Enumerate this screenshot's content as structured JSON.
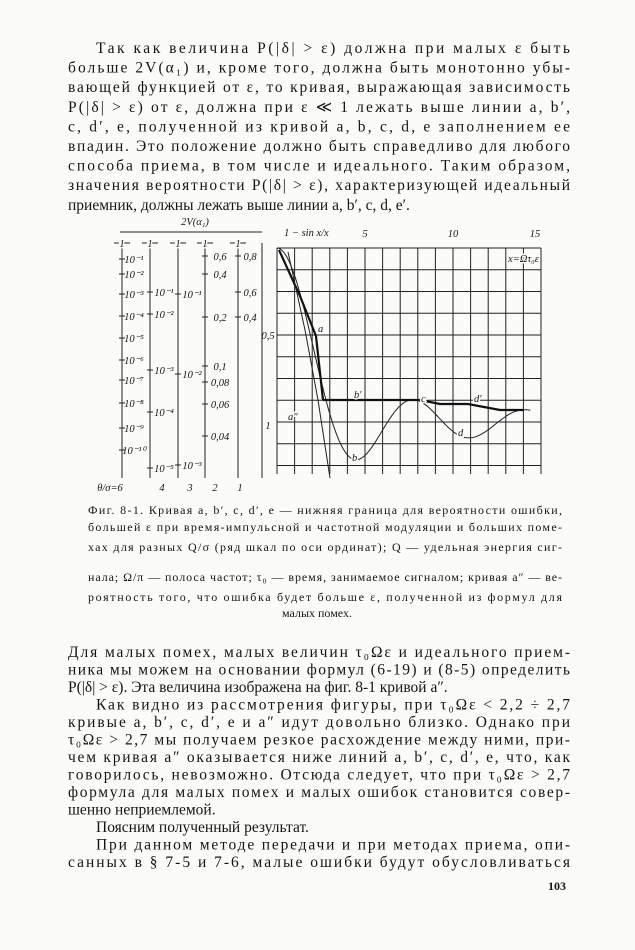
{
  "text_top": {
    "lines": [
      "Так как величина P(|δ| > ε) должна при малых ε быть",
      "больше 2V(α₁) и, кроме того, должна быть монотонно убы-",
      "вающей функцией от ε, то кривая, выражающая зависимость",
      "P(|δ| > ε) от ε, должна при ε ≪ 1 лежать выше линии a, b′,",
      "c, d′, e, полученной из кривой a, b, c, d, e заполнением ее",
      "впадин. Это положение должно быть справедливо для любого",
      "способа приема, в том числе и идеального. Таким образом,",
      "значения вероятности P(|δ| > ε), характеризующей идеальный",
      "приемник, должны лежать выше линии a, b′, c, d, e′."
    ]
  },
  "figure": {
    "scale_title": "2V(α₁)",
    "curve_formula": "1 − sin x/x",
    "x_ticks": [
      "5",
      "10",
      "15"
    ],
    "x_label": "x=Ωτ₀ε",
    "y_ticks": [
      "0,5",
      "1"
    ],
    "scale_tops": [
      "1",
      "1",
      "1",
      "1",
      "1"
    ],
    "scale_bottoms": [
      "θ/σ=6",
      "4",
      "3",
      "2",
      "1"
    ],
    "scales": [
      [
        "10⁻¹",
        "10⁻²",
        "10⁻³",
        "10⁻⁴",
        "10⁻⁵",
        "10⁻⁶",
        "10⁻⁷",
        "10⁻⁸",
        "10⁻⁹",
        "10⁻¹⁰"
      ],
      [
        "10⁻¹",
        "10⁻²",
        "10⁻³",
        "10⁻⁴",
        "10⁻⁵"
      ],
      [
        "10⁻¹",
        "10⁻²",
        "10⁻³"
      ],
      [
        "0,6",
        "0,4",
        "0,2",
        "0,1",
        "0,08",
        "0,06",
        "0,04"
      ],
      [
        "0,8",
        "0,6",
        "0,4"
      ]
    ],
    "curve_labels": [
      "a",
      "b′",
      "c",
      "d′",
      "a″",
      "b",
      "d"
    ]
  },
  "caption": {
    "lines": [
      "Фиг. 8-1. Кривая a, b′, c, d′, e — нижняя граница для вероятности ошибки,",
      "большей ε при время-импульсной и частотной модуляции и больших поме-",
      "хах для разных Q/σ (ряд шкал по оси ординат); Q — удельная энергия сиг-",
      "нала; Ω/π — полоса частот; τ₀ — время, занимаемое сигналом; кривая a″ — ве-",
      "роятность того, что ошибка будет больше ε, полученной из формул для",
      "малых помех."
    ]
  },
  "text_bottom": [
    {
      "lines": [
        "Для малых помех, малых величин τ₀Ωε и идеального прием-",
        "ника мы можем на основании формул (6-19) и (8-5) определить",
        "P(|δ| > ε). Эта величина изображена на фиг. 8-1 кривой a″."
      ]
    },
    {
      "lines": [
        "Как видно из рассмотрения фигуры, при τ₀Ωε < 2,2 ÷ 2,7",
        "кривые a, b′, c, d′, e и a″ идут довольно близко. Однако при",
        "τ₀Ωε > 2,7 мы получаем резкое расхождение между ними, при-",
        "чем кривая a″ оказывается ниже линий a, b′, c, d′, e, что, как",
        "говорилось, невозможно. Отсюда следует, что при τ₀Ωε > 2,7",
        "формула для малых помех и малых ошибок становится совер-",
        "шенно неприемлемой."
      ]
    },
    {
      "lines": [
        "Поясним полученный результат."
      ]
    },
    {
      "lines": [
        "При данном методе передачи и при методах приема, опи-",
        "санных в § 7-5 и 7-6, малые ошибки будут обусловливаться"
      ]
    }
  ],
  "page_number": "103"
}
